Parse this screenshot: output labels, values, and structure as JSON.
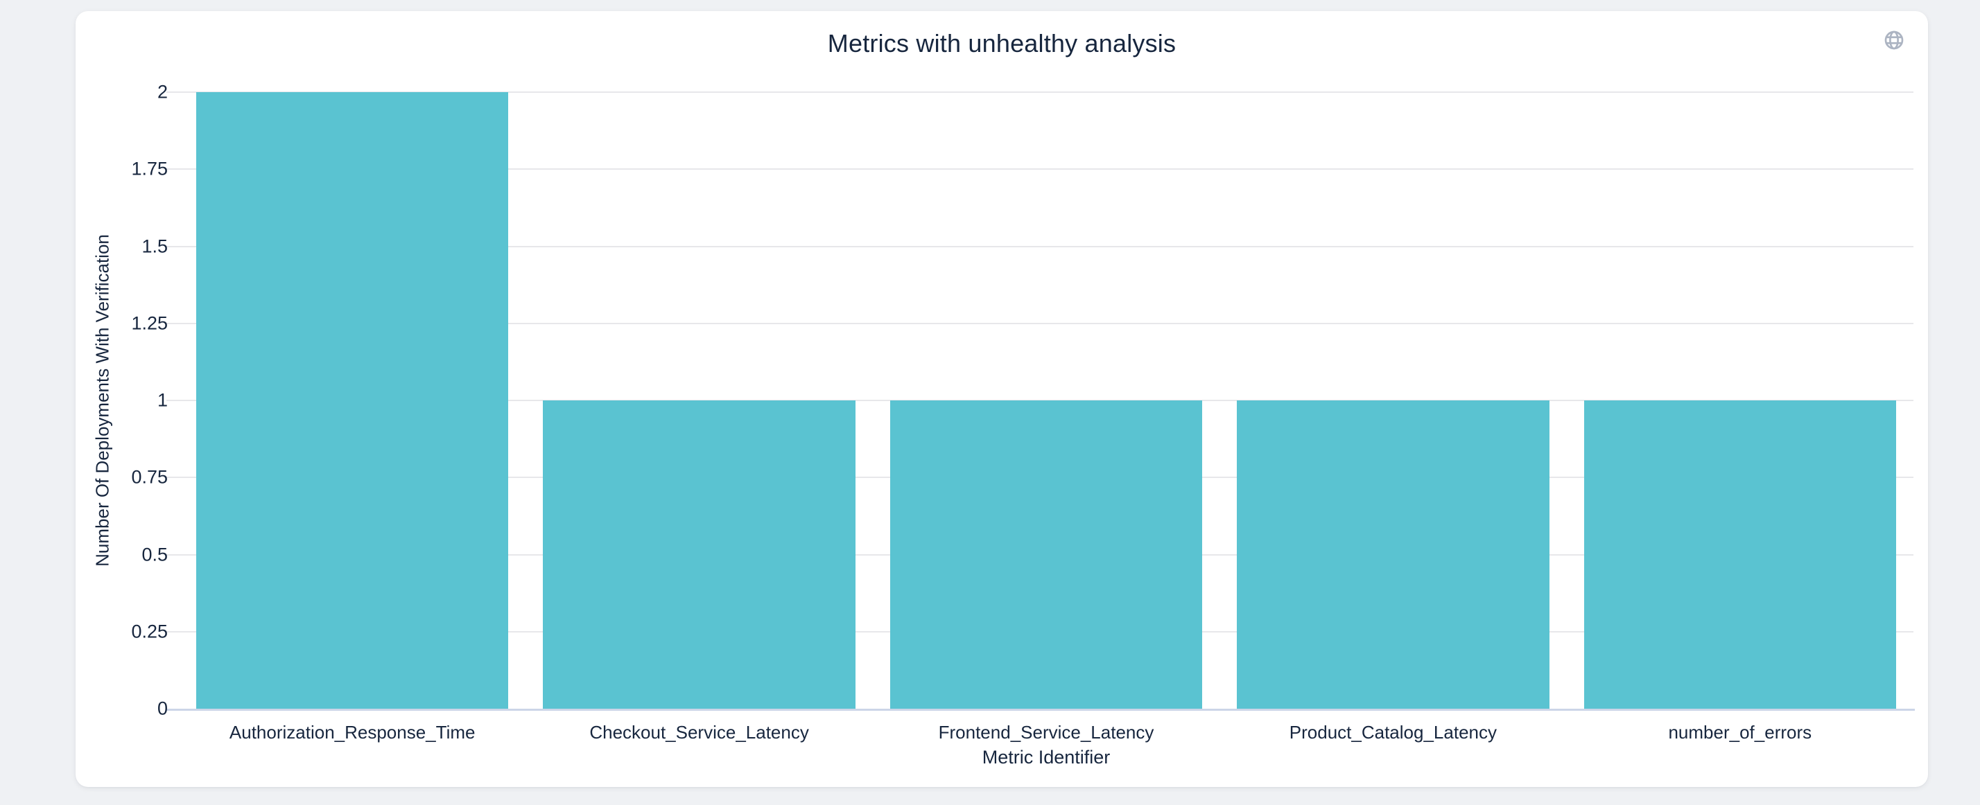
{
  "header": {
    "title": "Metrics with unhealthy analysis",
    "globe_icon": "globe-icon"
  },
  "chart_data": {
    "type": "bar",
    "title": "Metrics with unhealthy analysis",
    "categories": [
      "Authorization_Response_Time",
      "Checkout_Service_Latency",
      "Frontend_Service_Latency",
      "Product_Catalog_Latency",
      "number_of_errors"
    ],
    "values": [
      2,
      1,
      1,
      1,
      1
    ],
    "xlabel": "Metric Identifier",
    "ylabel": "Number Of Deployments With Verification",
    "ylim": [
      0,
      2
    ],
    "ytick_labels": [
      "0",
      "0.25",
      "0.5",
      "0.75",
      "1",
      "1.25",
      "1.5",
      "1.75",
      "2"
    ],
    "grid": true,
    "legend_position": "none",
    "bar_color": "#5ac3d1"
  },
  "colors": {
    "page_background": "#eff1f4",
    "card_background": "#ffffff",
    "text": "#17263e",
    "gridline": "#e7e7ea",
    "axis_line": "#ccd5e8",
    "bar": "#5ac3d1",
    "globe_icon": "#acb4c2"
  }
}
